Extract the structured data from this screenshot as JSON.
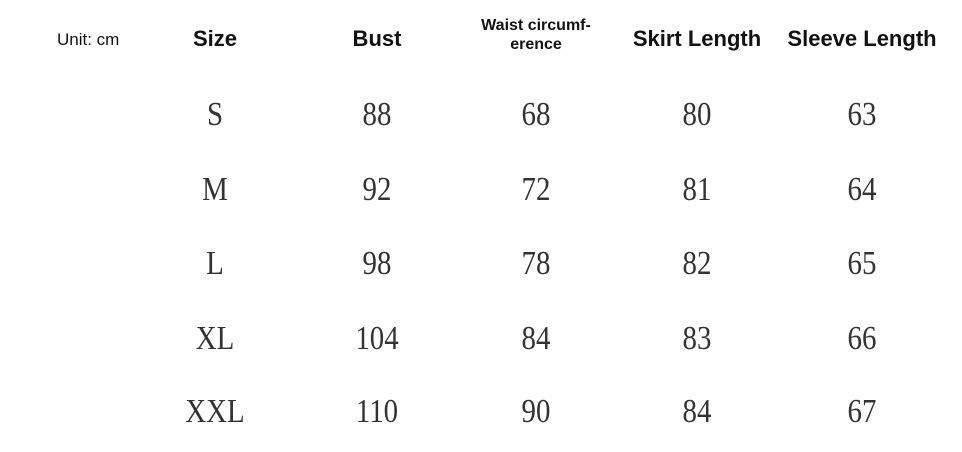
{
  "unit_label": "Unit: cm",
  "headers": [
    "Size",
    "Bust",
    "Waist circumf-",
    "Skirt Length",
    "Sleeve Length"
  ],
  "waist_header_line2": "erence",
  "rows": [
    [
      "S",
      "88",
      "68",
      "80",
      "63"
    ],
    [
      "M",
      "92",
      "72",
      "81",
      "64"
    ],
    [
      "L",
      "98",
      "78",
      "82",
      "65"
    ],
    [
      "XL",
      "104",
      "84",
      "83",
      "66"
    ],
    [
      "XXL",
      "110",
      "90",
      "84",
      "67"
    ]
  ]
}
